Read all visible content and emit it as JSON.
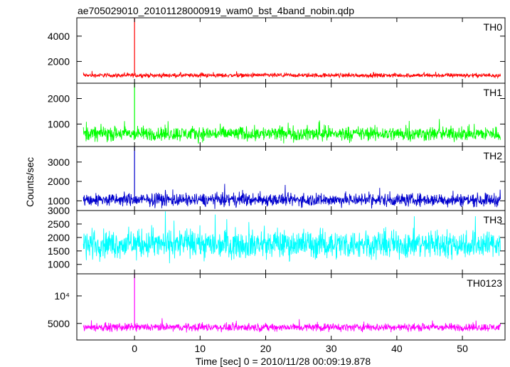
{
  "chart_data": {
    "type": "line",
    "title": "ae705029010_20101128000919_wam0_bst_4band_nobin.qdp",
    "xlabel": "Time [sec] 0 = 2010/11/28 00:09:19.878",
    "ylabel": "Counts/sec",
    "xlim": [
      -8.8,
      56.5
    ],
    "x_ticks": [
      0,
      10,
      20,
      30,
      40,
      50
    ],
    "x_tick_labels": [
      "0",
      "10",
      "20",
      "30",
      "40",
      "50"
    ],
    "grid": false,
    "panels": [
      {
        "name": "TH0",
        "color": "#ff0000",
        "ylim": [
          280,
          5450
        ],
        "y_ticks": [
          2000,
          4000
        ],
        "y_tick_labels": [
          "2000",
          "4000"
        ],
        "baseline": 900,
        "noise_amplitude": 350,
        "spike": {
          "x": 0.0,
          "y": 5450
        }
      },
      {
        "name": "TH1",
        "color": "#00ff00",
        "ylim": [
          120,
          2600
        ],
        "y_ticks": [
          1000,
          2000
        ],
        "y_tick_labels": [
          "1000",
          "2000"
        ],
        "baseline": 620,
        "noise_amplitude": 600,
        "spike": {
          "x": 0.0,
          "y": 2600
        }
      },
      {
        "name": "TH2",
        "color": "#0000cd",
        "ylim": [
          500,
          3800
        ],
        "y_ticks": [
          1000,
          2000,
          3000
        ],
        "y_tick_labels": [
          "1000",
          "2000",
          "3000"
        ],
        "baseline": 1050,
        "noise_amplitude": 700,
        "spike": {
          "x": 0.0,
          "y": 3800
        }
      },
      {
        "name": "TH3",
        "color": "#00ffff",
        "ylim": [
          650,
          3000
        ],
        "y_ticks": [
          1000,
          1500,
          2000,
          2500,
          3000
        ],
        "y_tick_labels": [
          "1000",
          "1500",
          "2000",
          "2500",
          "3000"
        ],
        "baseline": 1750,
        "noise_amplitude": 1100,
        "spike": null
      },
      {
        "name": "TH0123",
        "color": "#ff00ff",
        "ylim": [
          2000,
          14000
        ],
        "y_ticks": [
          5000,
          10000
        ],
        "y_tick_labels": [
          "5000",
          "10⁴"
        ],
        "baseline": 4300,
        "noise_amplitude": 1500,
        "spike": {
          "x": 0.0,
          "y": 14000
        }
      }
    ]
  }
}
